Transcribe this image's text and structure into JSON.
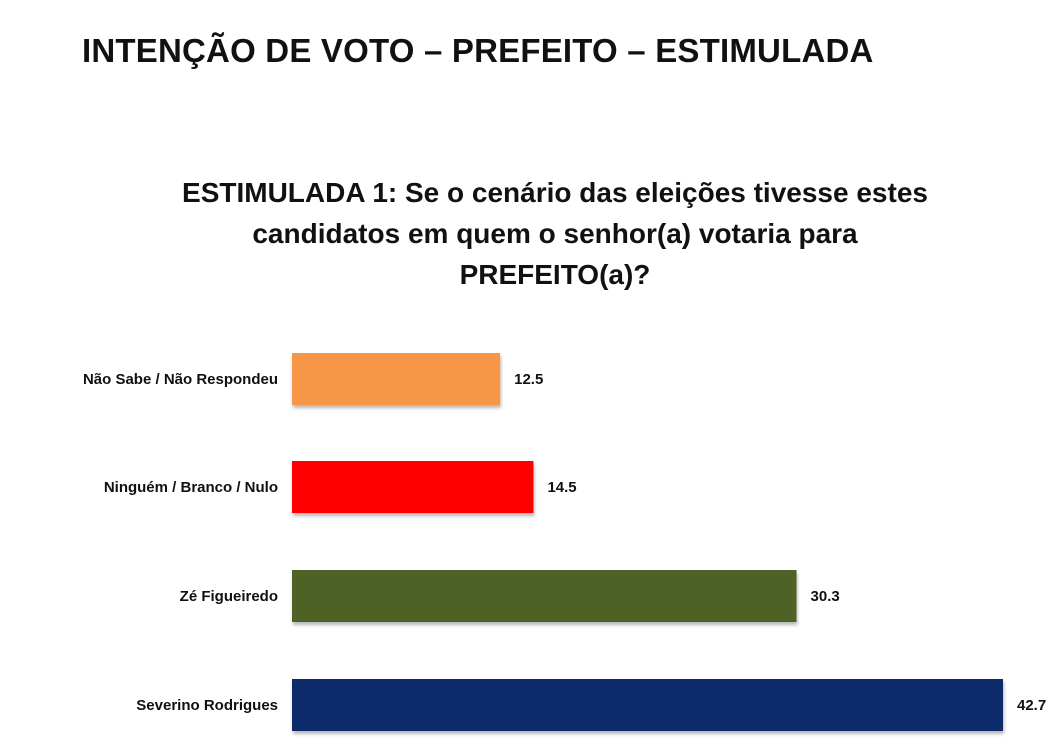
{
  "header": {
    "title": "INTENÇÃO DE VOTO – PREFEITO – ESTIMULADA"
  },
  "question": {
    "lines": [
      "ESTIMULADA 1: Se o cenário das eleições tivesse estes",
      "candidatos em quem o senhor(a) votaria para",
      "PREFEITO(a)?"
    ]
  },
  "chart_data": {
    "type": "bar",
    "orientation": "horizontal",
    "categories": [
      "Não Sabe / Não Respondeu",
      "Ninguém / Branco / Nulo",
      "Zé Figueiredo",
      "Severino Rodrigues"
    ],
    "values": [
      12.5,
      14.5,
      30.3,
      42.7
    ],
    "colors": [
      "#F79646",
      "#FF0000",
      "#4F6228",
      "#0D2A6B"
    ],
    "xlim": [
      0,
      42.7
    ],
    "grid": false,
    "legend": "none",
    "data_labels": true
  }
}
